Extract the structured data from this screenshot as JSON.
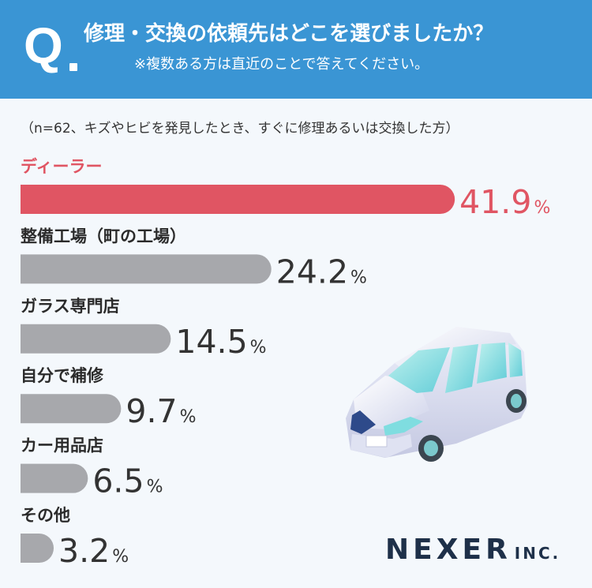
{
  "header": {
    "q_mark": "Q",
    "title": "修理・交換の依頼先はどこを選びましたか？",
    "note": "※複数ある方は直近のことで答えてください。"
  },
  "sample_note": "（n=62、キズやヒビを発見したとき、すぐに修理あるいは交換した方）",
  "chart_data": {
    "type": "bar",
    "orientation": "horizontal",
    "categories": [
      "ディーラー",
      "整備工場（町の工場）",
      "ガラス専門店",
      "自分で補修",
      "カー用品店",
      "その他"
    ],
    "values": [
      41.9,
      24.2,
      14.5,
      9.7,
      6.5,
      3.2
    ],
    "value_labels": [
      "41.9",
      "24.2",
      "14.5",
      "9.7",
      "6.5",
      "3.2"
    ],
    "unit": "%",
    "colors": {
      "highlight": "#e05563",
      "default": "#a7a8ac",
      "highlight_label": "#e05563",
      "default_label": "#2b2b2b",
      "default_value": "#333333"
    }
  },
  "brand": {
    "name": "NEXER",
    "suffix": "INC."
  },
  "colors": {
    "header_bg": "#3a95d4",
    "page_bg": "#f4f8fc",
    "logo": "#1e3049"
  },
  "illustration": {
    "icon": "car-icon"
  }
}
